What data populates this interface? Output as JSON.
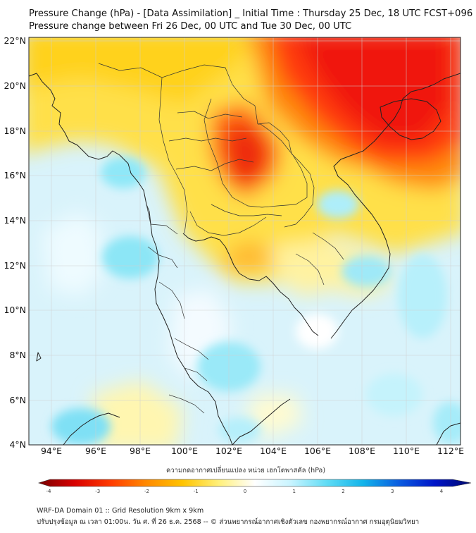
{
  "title_line1": "Pressure Change (hPa) - [Data Assimilation] _ Initial Time : Thursday 25 Dec, 18 UTC FCST+096",
  "title_line2": "Pressure change between Fri 26 Dec, 00 UTC and Tue 30 Dec, 00 UTC",
  "lat_labels": [
    "22°N",
    "20°N",
    "18°N",
    "16°N",
    "14°N",
    "12°N",
    "10°N",
    "8°N",
    "6°N",
    "4°N"
  ],
  "lon_labels": [
    "94°E",
    "96°E",
    "98°E",
    "100°E",
    "102°E",
    "104°E",
    "106°E",
    "108°E",
    "110°E",
    "112°E"
  ],
  "colorbar": {
    "title": "ความกดอากาศเปลี่ยนแปลง หน่วย เฮกโตพาสคัล (hPa)",
    "tick_labels": [
      "-4",
      "-3",
      "-2",
      "-1",
      "0",
      "1",
      "2",
      "3",
      "4"
    ],
    "colors": [
      "#7a0000",
      "#d80000",
      "#ff3b00",
      "#ff8a00",
      "#ffc400",
      "#fff07a",
      "#ffffff",
      "#c8f4ff",
      "#5fdcf5",
      "#12b4ea",
      "#0a5ce0",
      "#0014c8",
      "#000a6e"
    ]
  },
  "footer_line1": "WRF-DA Domain 01 :: Grid Resolution 9km x 9km",
  "footer_line2": "ปรับปรุงข้อมูล ณ เวลา 01:00น. วัน ศ. ที่ 26 ธ.ค. 2568 -- © ส่วนพยากรณ์อากาศเชิงตัวเลข กองพยากรณ์อากาศ กรมอุตุนิยมวิทยา"
}
